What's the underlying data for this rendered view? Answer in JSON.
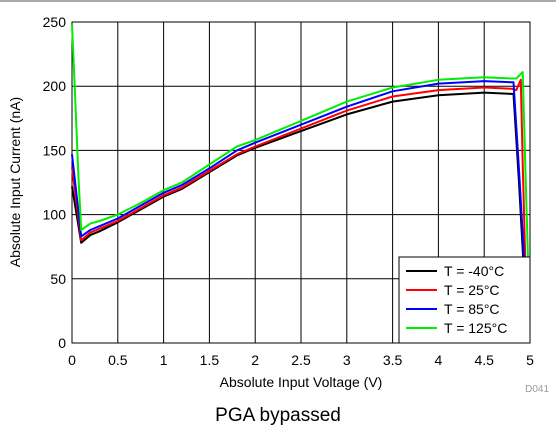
{
  "chart_data": {
    "type": "line",
    "xlabel": "Absolute Input Voltage (V)",
    "ylabel": "Absolute Input Current (nA)",
    "xlim": [
      0,
      5
    ],
    "ylim": [
      0,
      250
    ],
    "xticks": [
      "0",
      "0.5",
      "1",
      "1.5",
      "2",
      "2.5",
      "3",
      "3.5",
      "4",
      "4.5",
      "5"
    ],
    "yticks": [
      "0",
      "50",
      "100",
      "150",
      "200",
      "250"
    ],
    "grid": true,
    "legend_position": "bottom-right",
    "figure_code": "D041",
    "series": [
      {
        "name": "T = -40°C",
        "color": "#000000",
        "points": [
          [
            0,
            122
          ],
          [
            0.05,
            100
          ],
          [
            0.1,
            78
          ],
          [
            0.2,
            84
          ],
          [
            0.3,
            87
          ],
          [
            0.5,
            94
          ],
          [
            0.75,
            104
          ],
          [
            1.0,
            114
          ],
          [
            1.2,
            120
          ],
          [
            1.5,
            133
          ],
          [
            1.8,
            146
          ],
          [
            2.0,
            152
          ],
          [
            2.5,
            165
          ],
          [
            3.0,
            178
          ],
          [
            3.5,
            188
          ],
          [
            4.0,
            193
          ],
          [
            4.5,
            195
          ],
          [
            4.8,
            194
          ],
          [
            4.82,
            194
          ],
          [
            4.88,
            125
          ],
          [
            4.93,
            60
          ]
        ]
      },
      {
        "name": "T = 25°C",
        "color": "#ff0000",
        "points": [
          [
            0,
            137
          ],
          [
            0.05,
            108
          ],
          [
            0.1,
            80
          ],
          [
            0.2,
            86
          ],
          [
            0.3,
            89
          ],
          [
            0.5,
            95
          ],
          [
            0.75,
            105
          ],
          [
            1.0,
            115
          ],
          [
            1.2,
            121
          ],
          [
            1.5,
            134
          ],
          [
            1.8,
            147
          ],
          [
            2.0,
            153
          ],
          [
            2.5,
            167
          ],
          [
            3.0,
            181
          ],
          [
            3.5,
            192
          ],
          [
            4.0,
            197
          ],
          [
            4.5,
            199
          ],
          [
            4.8,
            198
          ],
          [
            4.85,
            197
          ],
          [
            4.9,
            205
          ],
          [
            4.92,
            140
          ],
          [
            4.95,
            60
          ]
        ]
      },
      {
        "name": "T = 85°C",
        "color": "#0000ff",
        "points": [
          [
            0,
            147
          ],
          [
            0.05,
            115
          ],
          [
            0.1,
            83
          ],
          [
            0.2,
            88
          ],
          [
            0.3,
            91
          ],
          [
            0.5,
            97
          ],
          [
            0.75,
            107
          ],
          [
            1.0,
            117
          ],
          [
            1.2,
            123
          ],
          [
            1.5,
            136
          ],
          [
            1.8,
            150
          ],
          [
            2.0,
            156
          ],
          [
            2.5,
            170
          ],
          [
            3.0,
            184
          ],
          [
            3.5,
            196
          ],
          [
            4.0,
            202
          ],
          [
            4.5,
            204
          ],
          [
            4.8,
            203
          ],
          [
            4.82,
            203
          ],
          [
            4.88,
            135
          ],
          [
            4.94,
            60
          ]
        ]
      },
      {
        "name": "T = 125°C",
        "color": "#00ee00",
        "points": [
          [
            0,
            248
          ],
          [
            0.03,
            200
          ],
          [
            0.07,
            130
          ],
          [
            0.1,
            88
          ],
          [
            0.2,
            93
          ],
          [
            0.3,
            95
          ],
          [
            0.5,
            100
          ],
          [
            0.75,
            109
          ],
          [
            1.0,
            119
          ],
          [
            1.2,
            125
          ],
          [
            1.5,
            139
          ],
          [
            1.8,
            153
          ],
          [
            2.0,
            158
          ],
          [
            2.5,
            173
          ],
          [
            3.0,
            188
          ],
          [
            3.5,
            199
          ],
          [
            4.0,
            205
          ],
          [
            4.5,
            207
          ],
          [
            4.8,
            206
          ],
          [
            4.85,
            206
          ],
          [
            4.92,
            211
          ],
          [
            4.95,
            135
          ],
          [
            4.98,
            60
          ]
        ]
      }
    ]
  },
  "caption": "PGA bypassed"
}
